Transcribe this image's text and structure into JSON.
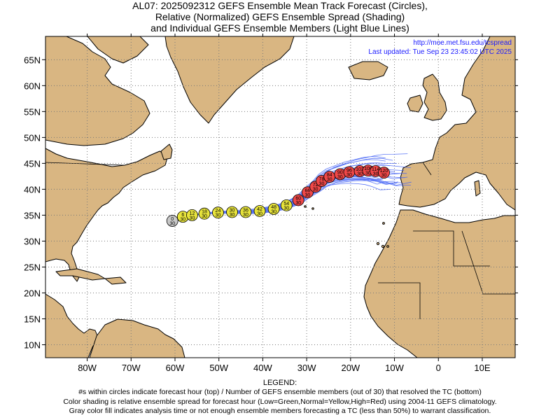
{
  "title": {
    "line1": "AL07: 2025092312 GEFS Ensemble Mean Track Forecast (Circles),",
    "line2": "Relative (Normalized) GEFS Ensemble Spread (Shading)",
    "line3": "and Individual GEFS Ensemble Members (Light Blue Lines)"
  },
  "info": {
    "url": "http://moe.met.fsu.edu/tcspread",
    "updated": "Last updated: Tue Sep 23 23:45:02 UTC 2025"
  },
  "axes": {
    "lon_ticks": [
      {
        "lon": -80,
        "label": "80W"
      },
      {
        "lon": -70,
        "label": "70W"
      },
      {
        "lon": -60,
        "label": "60W"
      },
      {
        "lon": -50,
        "label": "50W"
      },
      {
        "lon": -40,
        "label": "40W"
      },
      {
        "lon": -30,
        "label": "30W"
      },
      {
        "lon": -20,
        "label": "20W"
      },
      {
        "lon": -10,
        "label": "10W"
      },
      {
        "lon": 0,
        "label": "0"
      },
      {
        "lon": 10,
        "label": "10E"
      }
    ],
    "lat_ticks": [
      {
        "lat": 65,
        "label": "65N"
      },
      {
        "lat": 60,
        "label": "60N"
      },
      {
        "lat": 55,
        "label": "55N"
      },
      {
        "lat": 50,
        "label": "50N"
      },
      {
        "lat": 45,
        "label": "45N"
      },
      {
        "lat": 40,
        "label": "40N"
      },
      {
        "lat": 35,
        "label": "35N"
      },
      {
        "lat": 30,
        "label": "30N"
      },
      {
        "lat": 25,
        "label": "25N"
      },
      {
        "lat": 20,
        "label": "20N"
      },
      {
        "lat": 15,
        "label": "15N"
      },
      {
        "lat": 10,
        "label": "10N"
      }
    ],
    "lon_range": [
      -89.5,
      17.5
    ],
    "lat_range": [
      7.5,
      69.5
    ],
    "grid": true
  },
  "colors": {
    "land": "#d9b682",
    "ocean": "#ffffff",
    "member_lines": "#3f5ff5",
    "gray": "#c8c8c8",
    "green": "#33cc33",
    "yellow": "#e8e43c",
    "red": "#f04848"
  },
  "track": [
    {
      "hour": "0",
      "members": "30",
      "lon": -60.6,
      "lat": 33.9,
      "spread": "gray"
    },
    {
      "hour": "6",
      "members": "30",
      "lon": -58.2,
      "lat": 34.7,
      "spread": "yellow"
    },
    {
      "hour": "12",
      "members": "30",
      "lon": -56.1,
      "lat": 35.0,
      "spread": "yellow"
    },
    {
      "hour": "18",
      "members": "30",
      "lon": -53.3,
      "lat": 35.3,
      "spread": "yellow"
    },
    {
      "hour": "24",
      "members": "30",
      "lon": -50.2,
      "lat": 35.5,
      "spread": "yellow"
    },
    {
      "hour": "30",
      "members": "30",
      "lon": -47.0,
      "lat": 35.6,
      "spread": "yellow"
    },
    {
      "hour": "36",
      "members": "30",
      "lon": -43.9,
      "lat": 35.6,
      "spread": "yellow"
    },
    {
      "hour": "42",
      "members": "30",
      "lon": -40.7,
      "lat": 35.8,
      "spread": "yellow"
    },
    {
      "hour": "48",
      "members": "30",
      "lon": -37.5,
      "lat": 36.2,
      "spread": "yellow"
    },
    {
      "hour": "54",
      "members": "30",
      "lon": -34.6,
      "lat": 36.9,
      "spread": "yellow"
    },
    {
      "hour": "60",
      "members": "30",
      "lon": -31.9,
      "lat": 37.9,
      "spread": "red"
    },
    {
      "hour": "66",
      "members": "30",
      "lon": -29.8,
      "lat": 39.4,
      "spread": "red"
    },
    {
      "hour": "72",
      "members": "30",
      "lon": -28.0,
      "lat": 40.5,
      "spread": "red"
    },
    {
      "hour": "78",
      "members": "30",
      "lon": -26.6,
      "lat": 41.6,
      "spread": "red"
    },
    {
      "hour": "84",
      "members": "30",
      "lon": -24.8,
      "lat": 42.4,
      "spread": "red"
    },
    {
      "hour": "90",
      "members": "30",
      "lon": -22.4,
      "lat": 42.9,
      "spread": "red"
    },
    {
      "hour": "96",
      "members": "30",
      "lon": -20.3,
      "lat": 43.3,
      "spread": "red"
    },
    {
      "hour": "102",
      "members": "30",
      "lon": -17.9,
      "lat": 43.5,
      "spread": "red"
    },
    {
      "hour": "108",
      "members": "30",
      "lon": -16.0,
      "lat": 43.6,
      "spread": "red"
    },
    {
      "hour": "114",
      "members": "30",
      "lon": -14.3,
      "lat": 43.5,
      "spread": "red"
    },
    {
      "hour": "120",
      "members": "30",
      "lon": -12.4,
      "lat": 43.2,
      "spread": "red"
    }
  ],
  "legend": {
    "title": "LEGEND:",
    "line1": "#s within circles indicate forecast hour (top) / Number of GEFS ensemble members (out of 30) that resolved the TC (bottom)",
    "line2": "Color shading is relative ensemble spread for forecast hour (Low=Green,Normal=Yellow,High=Red) using 2004-11 GEFS climatology.",
    "line3": "Gray color fill indicates analysis time or not enough ensemble members forecasting a TC (less than 50%) to warrant classification."
  }
}
